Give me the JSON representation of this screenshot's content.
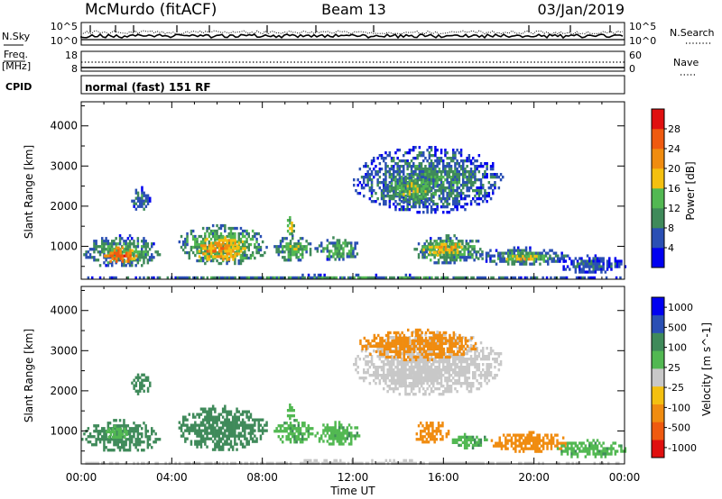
{
  "header": {
    "station": "McMurdo (fitACF)",
    "beam": "Beam 13",
    "date": "03/Jan/2019"
  },
  "noise_panel": {
    "left_label": "N.Sky",
    "right_label": "N.Search",
    "left_top_tick": "10^5",
    "left_bottom_tick": "10^0",
    "right_top_tick": "10^5",
    "right_bottom_tick": "10^0"
  },
  "freq_panel": {
    "left_label_1": "Freq.",
    "left_label_2": "[MHz]",
    "left_ticks": [
      "18",
      "8"
    ],
    "right_label": "Nave",
    "right_ticks": [
      "60",
      "0"
    ]
  },
  "cpid_panel": {
    "label": "CPID",
    "text": "normal (fast) 151 RF"
  },
  "colors": {
    "power": [
      "#0000f0",
      "#2a4fb4",
      "#3f8a5a",
      "#52b852",
      "#f4c010",
      "#f08c10",
      "#ef5a10",
      "#e01010"
    ],
    "velocity": [
      "#e01010",
      "#ef5a10",
      "#f08c10",
      "#f4c010",
      "#c8c8c8",
      "#52b852",
      "#3f8a5a",
      "#2a4fb4",
      "#0000f0"
    ]
  },
  "chart_data": [
    {
      "type": "heatmap",
      "title": "Power",
      "xlabel": "",
      "ylabel": "Slant Range [km]",
      "y_ticks": [
        "1000",
        "2000",
        "3000",
        "4000"
      ],
      "colorbar_label": "Power [dB]",
      "colorbar_ticks": [
        "4",
        "8",
        "12",
        "16",
        "20",
        "24",
        "28"
      ],
      "x_range_hours": [
        0,
        24
      ],
      "y_range_km": [
        180,
        4600
      ],
      "regions": [
        {
          "t0": 0.0,
          "t1": 3.5,
          "r0": 500,
          "r1": 1300,
          "v": 12
        },
        {
          "t0": 0.9,
          "t1": 2.4,
          "r0": 600,
          "r1": 1000,
          "v": 26
        },
        {
          "t0": 2.2,
          "t1": 3.0,
          "r0": 1900,
          "r1": 2500,
          "v": 10
        },
        {
          "t0": 4.2,
          "t1": 8.2,
          "r0": 550,
          "r1": 1550,
          "v": 14
        },
        {
          "t0": 5.0,
          "t1": 7.2,
          "r0": 650,
          "r1": 1250,
          "v": 22
        },
        {
          "t0": 8.5,
          "t1": 10.2,
          "r0": 650,
          "r1": 1300,
          "v": 13
        },
        {
          "t0": 9.0,
          "t1": 9.4,
          "r0": 1300,
          "r1": 1750,
          "v": 18
        },
        {
          "t0": 10.3,
          "t1": 12.3,
          "r0": 650,
          "r1": 1250,
          "v": 12
        },
        {
          "t0": 12.0,
          "t1": 18.6,
          "r0": 1850,
          "r1": 3500,
          "v": 10
        },
        {
          "t0": 13.5,
          "t1": 15.8,
          "r0": 2100,
          "r1": 2800,
          "v": 14
        },
        {
          "t0": 14.6,
          "t1": 17.8,
          "r0": 600,
          "r1": 1300,
          "v": 13
        },
        {
          "t0": 15.0,
          "t1": 17.0,
          "r0": 800,
          "r1": 1150,
          "v": 20
        },
        {
          "t0": 17.5,
          "t1": 21.5,
          "r0": 550,
          "r1": 1000,
          "v": 11
        },
        {
          "t0": 18.5,
          "t1": 20.5,
          "r0": 650,
          "r1": 850,
          "v": 18
        },
        {
          "t0": 21.0,
          "t1": 24.0,
          "r0": 350,
          "r1": 800,
          "v": 8
        },
        {
          "t0": 0.0,
          "t1": 24.0,
          "r0": 190,
          "r1": 320,
          "v": 10
        }
      ]
    },
    {
      "type": "heatmap",
      "title": "Velocity",
      "xlabel": "Time UT",
      "ylabel": "Slant Range [km]",
      "y_ticks": [
        "1000",
        "2000",
        "3000",
        "4000"
      ],
      "x_ticks": [
        "00:00",
        "04:00",
        "08:00",
        "12:00",
        "16:00",
        "20:00",
        "00:00"
      ],
      "colorbar_label": "Velocity [m s^-1]",
      "colorbar_ticks": [
        "1000",
        "500",
        "100",
        "25",
        "-25",
        "-100",
        "-500",
        "-1000"
      ],
      "x_range_hours": [
        0,
        24
      ],
      "y_range_km": [
        180,
        4600
      ],
      "regions": [
        {
          "t0": 0.0,
          "t1": 3.5,
          "r0": 500,
          "r1": 1300,
          "v": 300
        },
        {
          "t0": 1.0,
          "t1": 2.0,
          "r0": 800,
          "r1": 1150,
          "v": 80
        },
        {
          "t0": 2.2,
          "t1": 3.0,
          "r0": 1900,
          "r1": 2500,
          "v": 300
        },
        {
          "t0": 4.2,
          "t1": 8.2,
          "r0": 550,
          "r1": 1650,
          "v": 300
        },
        {
          "t0": 8.5,
          "t1": 10.2,
          "r0": 700,
          "r1": 1300,
          "v": 80
        },
        {
          "t0": 9.0,
          "t1": 9.4,
          "r0": 1300,
          "r1": 1750,
          "v": 80
        },
        {
          "t0": 10.3,
          "t1": 12.3,
          "r0": 650,
          "r1": 1250,
          "v": 80
        },
        {
          "t0": 12.0,
          "t1": 18.6,
          "r0": 1900,
          "r1": 3500,
          "v": 0
        },
        {
          "t0": 12.2,
          "t1": 17.5,
          "r0": 2800,
          "r1": 3550,
          "v": -200
        },
        {
          "t0": 13.5,
          "t1": 15.8,
          "r0": 2100,
          "r1": 2700,
          "v": 0
        },
        {
          "t0": 14.6,
          "t1": 16.2,
          "r0": 700,
          "r1": 1300,
          "v": -200
        },
        {
          "t0": 16.2,
          "t1": 18.0,
          "r0": 600,
          "r1": 950,
          "v": 80
        },
        {
          "t0": 18.0,
          "t1": 21.5,
          "r0": 500,
          "r1": 1000,
          "v": -200
        },
        {
          "t0": 21.0,
          "t1": 24.0,
          "r0": 350,
          "r1": 800,
          "v": 80
        },
        {
          "t0": 0.0,
          "t1": 24.0,
          "r0": 190,
          "r1": 300,
          "v": 0
        }
      ]
    }
  ]
}
